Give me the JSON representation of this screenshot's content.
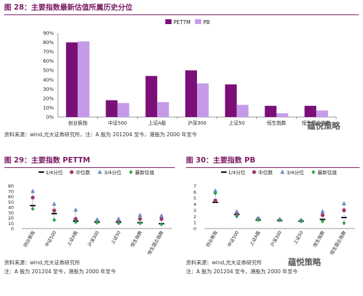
{
  "fig28": {
    "title": "图 28：主要指数最新估值所属历史分位",
    "source": "资料来源：wind,光大证券研究所，注：A 股为 201204 至今，港股为 2000 年至今"
  },
  "fig29": {
    "title": "图 29：主要指数 PETTM",
    "source_line1": "资料来源：wind,光大证券研究所",
    "source_line2": "注：A 股为 201204 至今，港股为 2000 年至今"
  },
  "fig30": {
    "title": "图 30：主要指数 PB",
    "source_line1": "资料来源：wind,光大证券研究所",
    "source_line2": "注：A 股为 201204 至今，港股为 2000 年至今"
  },
  "watermarks": [
    "蕴悦策略",
    "蕴悦策略"
  ],
  "chart_data": [
    {
      "type": "bar",
      "categories": [
        "创业板指",
        "中证500",
        "上证A股",
        "沪深300",
        "上证50",
        "恒生指数",
        "恒生国企指数"
      ],
      "series": [
        {
          "name": "PETTM",
          "values": [
            80,
            18,
            44,
            50,
            35,
            12,
            12
          ],
          "color": "#7b0f78"
        },
        {
          "name": "PB",
          "values": [
            81,
            15,
            16,
            36,
            13,
            4,
            7
          ],
          "color": "#c59ae9"
        }
      ],
      "ylim": [
        0,
        90
      ],
      "yticks": [
        "0%",
        "10%",
        "20%",
        "30%",
        "40%",
        "50%",
        "60%",
        "70%",
        "80%",
        "90%"
      ],
      "legend": "top-center"
    },
    {
      "type": "scatter",
      "categories": [
        "创业板指",
        "中证500",
        "上证A股",
        "沪深300",
        "上证50",
        "恒生指数",
        "恒生国企指数"
      ],
      "series": [
        {
          "name": "1/4分位",
          "marker": "dash",
          "color": "#000000",
          "values": [
            43,
            28,
            14,
            12,
            12,
            11,
            9
          ]
        },
        {
          "name": "中位数",
          "marker": "circle",
          "color": "#a0366e",
          "values": [
            58,
            34,
            18,
            14,
            15,
            18,
            18
          ]
        },
        {
          "name": "3/4分位",
          "marker": "triangle",
          "color": "#6b8cc4",
          "values": [
            70,
            46,
            35,
            17,
            18,
            25,
            24
          ]
        },
        {
          "name": "最新估值",
          "marker": "diamond",
          "color": "#2aa351",
          "values": [
            37,
            16,
            12,
            11,
            10,
            10,
            8
          ]
        }
      ],
      "ylim": [
        0,
        80
      ],
      "yticks": [
        "0",
        "10",
        "20",
        "30",
        "40",
        "50",
        "60",
        "70",
        "80"
      ],
      "legend": "top"
    },
    {
      "type": "scatter",
      "categories": [
        "创业板指",
        "中证500",
        "上证A股",
        "沪深300",
        "上证50",
        "恒生指数",
        "恒生国企指数"
      ],
      "series": [
        {
          "name": "1/4分位",
          "marker": "dash",
          "color": "#000000",
          "values": [
            4.3,
            2.3,
            1.4,
            1.3,
            1.2,
            1.5,
            1.8
          ]
        },
        {
          "name": "中位数",
          "marker": "circle",
          "color": "#a0366e",
          "values": [
            4.6,
            2.5,
            1.6,
            1.4,
            1.3,
            2.2,
            3.0
          ]
        },
        {
          "name": "3/4分位",
          "marker": "triangle",
          "color": "#6b8cc4",
          "values": [
            6.2,
            2.8,
            1.7,
            1.5,
            1.4,
            2.8,
            4.1
          ]
        },
        {
          "name": "最新估值",
          "marker": "diamond",
          "color": "#2aa351",
          "values": [
            5.8,
            2.0,
            1.4,
            1.4,
            1.2,
            1.2,
            0.9
          ]
        }
      ],
      "ylim": [
        0,
        7
      ],
      "yticks": [
        "0",
        "1",
        "2",
        "3",
        "4",
        "5",
        "6",
        "7"
      ],
      "legend": "top"
    }
  ]
}
